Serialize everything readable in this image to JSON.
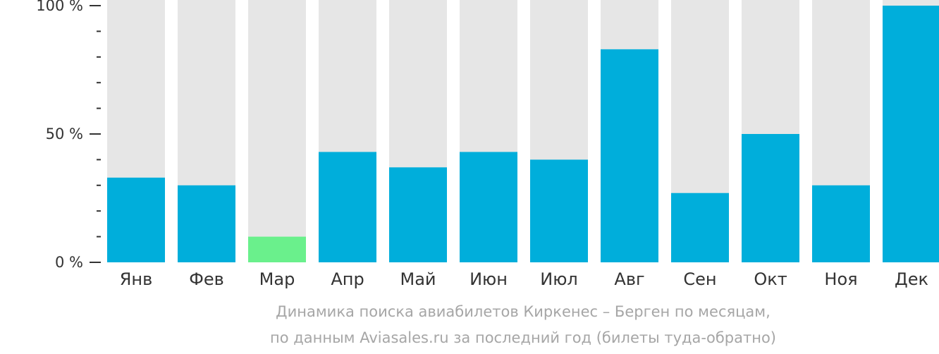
{
  "chart_data": {
    "type": "bar",
    "categories": [
      "Янв",
      "Фев",
      "Мар",
      "Апр",
      "Май",
      "Июн",
      "Июл",
      "Авг",
      "Сен",
      "Окт",
      "Ноя",
      "Дек"
    ],
    "values": [
      33,
      30,
      10,
      43,
      37,
      43,
      40,
      83,
      27,
      50,
      30,
      100
    ],
    "ylim": [
      0,
      100
    ],
    "y_tick_labels": [
      "0 %",
      "50 %",
      "100 %"
    ],
    "y_tick_values": [
      0,
      50,
      100
    ],
    "minor_ticks_between": 4,
    "highlight_index": 2,
    "colors": {
      "bar": "#00aedb",
      "highlight": "#6af08c",
      "background_bar": "#e6e6e6",
      "axis_text": "#333333"
    }
  },
  "caption": {
    "line1": "Динамика поиска авиабилетов Киркенес – Берген по месяцам,",
    "line2": "по данным Aviasales.ru за последний год (билеты туда-обратно)"
  }
}
